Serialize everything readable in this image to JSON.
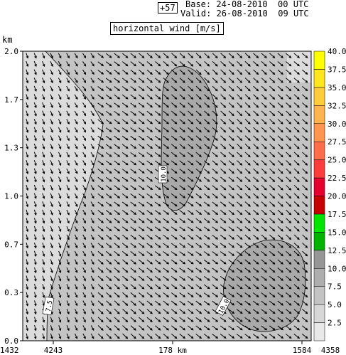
{
  "header": {
    "lead_time": "+57",
    "base": "Base: 24-08-2010  00 UTC",
    "valid": "Valid: 26-08-2010  09 UTC",
    "title": "horizontal wind [m/s]"
  },
  "chart_data": {
    "type": "heatmap",
    "title": "horizontal wind [m/s]",
    "ylabel": "km",
    "ylim": [
      0.0,
      2.0
    ],
    "y_ticks": [
      "0.0",
      "0.3",
      "0.7",
      "1.0",
      "1.3",
      "1.7",
      "2.0"
    ],
    "x_ticks": [
      "1432",
      "4243",
      "178 km",
      "1584",
      "4358"
    ],
    "colorbar": {
      "levels": [
        "2.5",
        "5.0",
        "7.5",
        "10.0",
        "12.5",
        "15.0",
        "17.5",
        "20.0",
        "22.5",
        "25.0",
        "27.5",
        "30.0",
        "32.5",
        "35.0",
        "37.5",
        "40.0"
      ],
      "colors": [
        "#e8e8e8",
        "#d7d7d7",
        "#c3c3c3",
        "#aeaeae",
        "#969696",
        "#00b400",
        "#00e600",
        "#c80000",
        "#e6002d",
        "#ff3c3c",
        "#ff6e4b",
        "#ff9650",
        "#ffb450",
        "#ffcd3c",
        "#ffe61e",
        "#ffff00"
      ]
    },
    "contour_labels": [
      "10.0",
      "10.0",
      "7.5"
    ],
    "grid": false
  },
  "colors": {
    "field_base": "#c4c4c4",
    "light_region": "#dcdcdc",
    "strong_region": "#a9a9a9",
    "arrow": "#000000"
  }
}
